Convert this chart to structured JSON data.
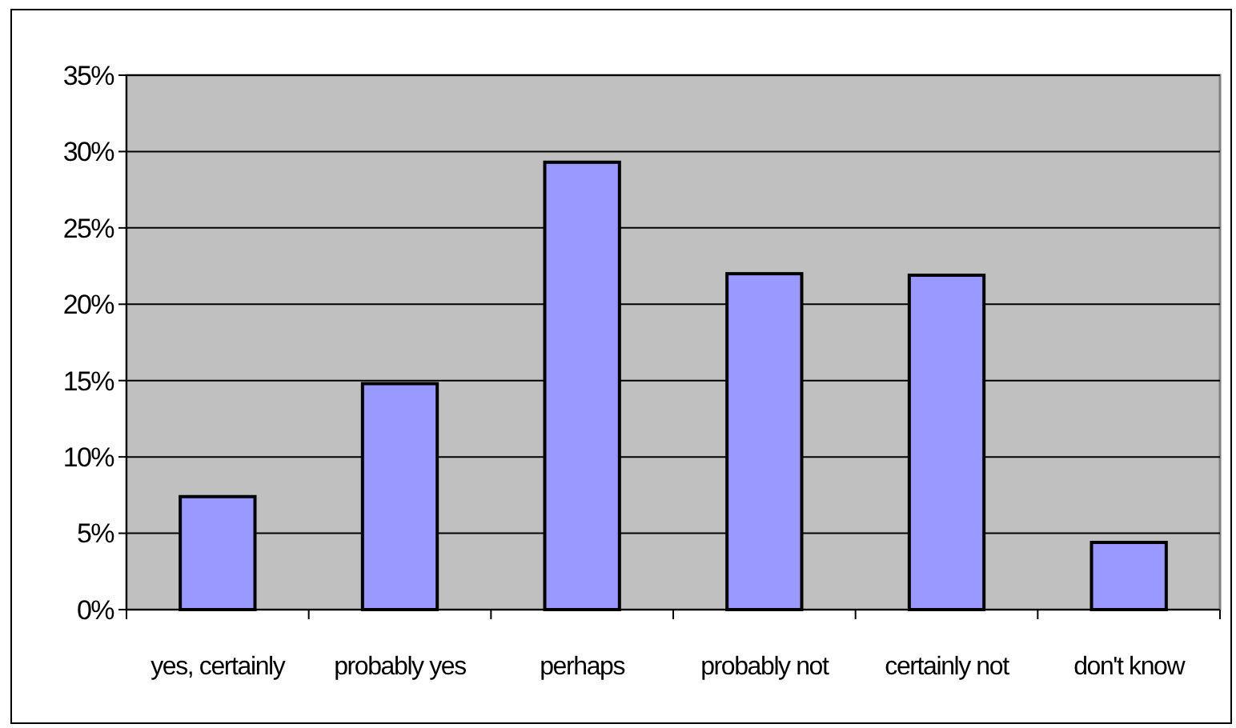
{
  "chart_data": {
    "type": "bar",
    "categories": [
      "yes, certainly",
      "probably yes",
      "perhaps",
      "probably not",
      "certainly not",
      "don't know"
    ],
    "values": [
      7.4,
      14.8,
      29.3,
      22.0,
      21.9,
      4.4
    ],
    "color": "#9999ff",
    "ylim": [
      0,
      35
    ],
    "yticks": [
      {
        "value": 0,
        "label": "0%"
      },
      {
        "value": 5,
        "label": "5%"
      },
      {
        "value": 10,
        "label": "10%"
      },
      {
        "value": 15,
        "label": "15%"
      },
      {
        "value": 20,
        "label": "20%"
      },
      {
        "value": 25,
        "label": "25%"
      },
      {
        "value": 30,
        "label": "30%"
      },
      {
        "value": 35,
        "label": "35%"
      }
    ],
    "grid": "y"
  }
}
